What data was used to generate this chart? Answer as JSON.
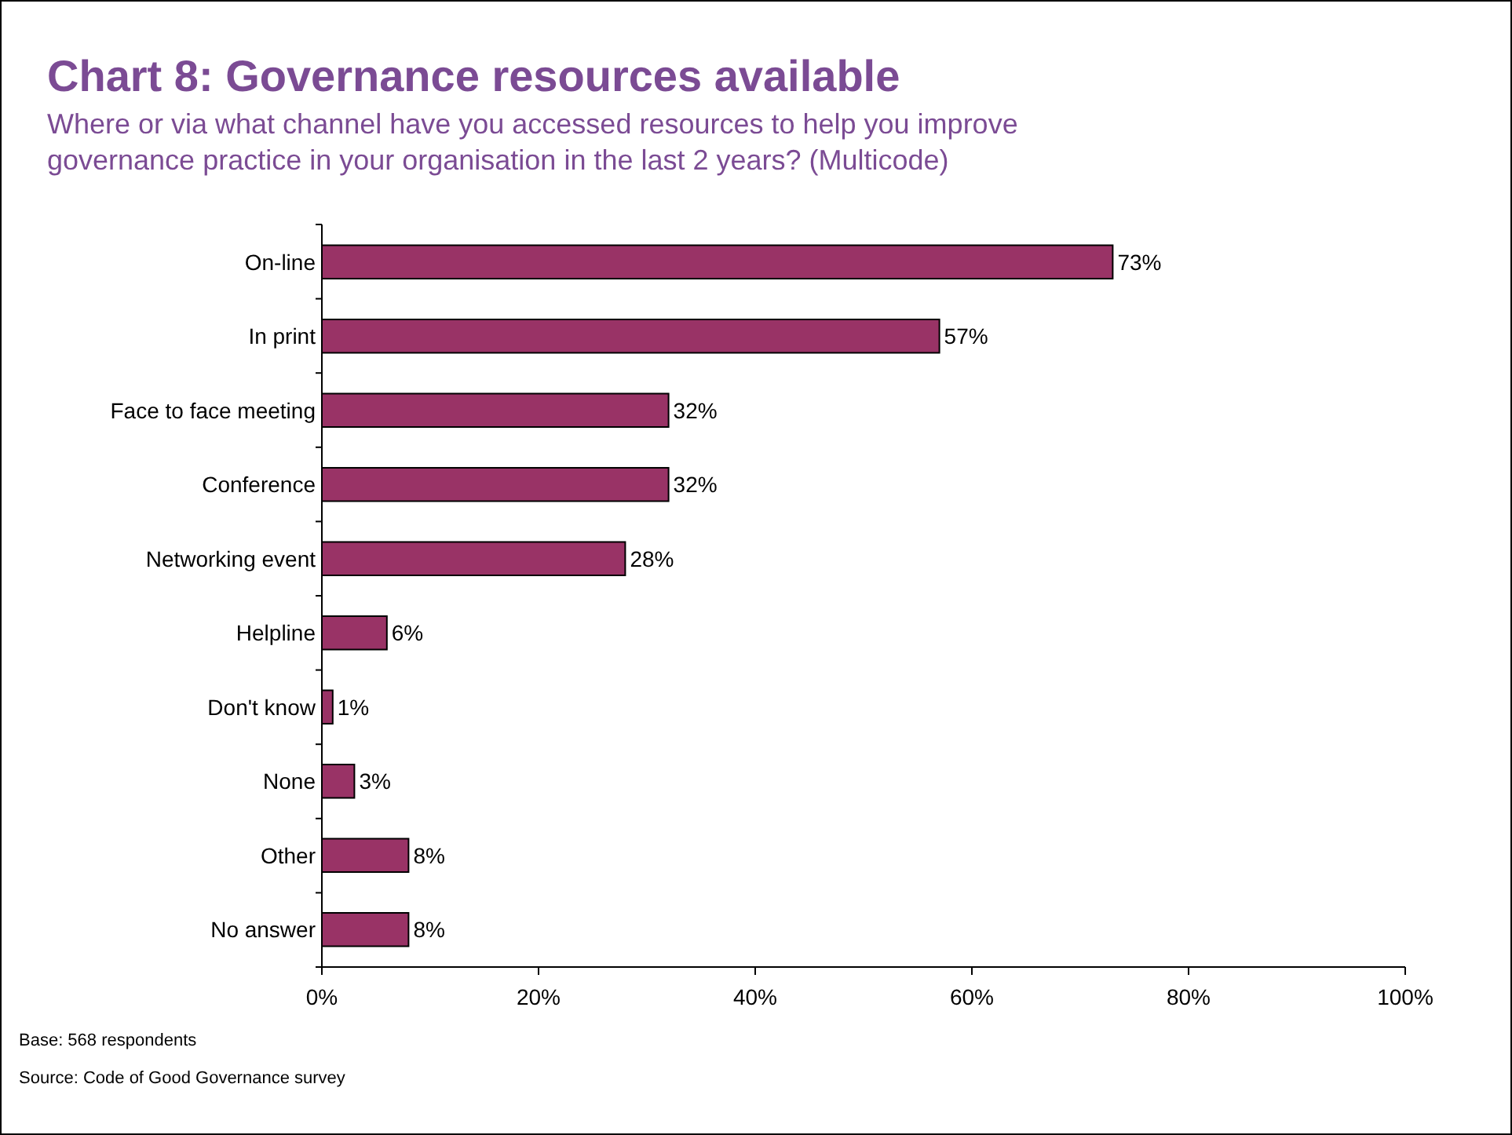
{
  "chart_data": {
    "type": "bar",
    "orientation": "horizontal",
    "title": "Chart 8: Governance resources available",
    "subtitle": "Where or via what channel have you accessed resources to help you improve governance practice in your organisation in the last 2 years? (Multicode)",
    "categories": [
      "On-line",
      "In print",
      "Face to face meeting",
      "Conference",
      "Networking event",
      "Helpline",
      "Don't know",
      "None",
      "Other",
      "No answer"
    ],
    "values": [
      73,
      57,
      32,
      32,
      28,
      6,
      1,
      3,
      8,
      8
    ],
    "value_labels": [
      "73%",
      "57%",
      "32%",
      "32%",
      "28%",
      "6%",
      "1%",
      "3%",
      "8%",
      "8%"
    ],
    "color": "#993366",
    "xlim": [
      0,
      100
    ],
    "xticks": [
      {
        "value": 0,
        "label": "0%"
      },
      {
        "value": 20,
        "label": "20%"
      },
      {
        "value": 40,
        "label": "40%"
      },
      {
        "value": 60,
        "label": "60%"
      },
      {
        "value": 80,
        "label": "80%"
      },
      {
        "value": 100,
        "label": "100%"
      }
    ],
    "grid": false,
    "annotations": [
      "Base: 568 respondents",
      "Source: Code of Good Governance survey"
    ]
  }
}
